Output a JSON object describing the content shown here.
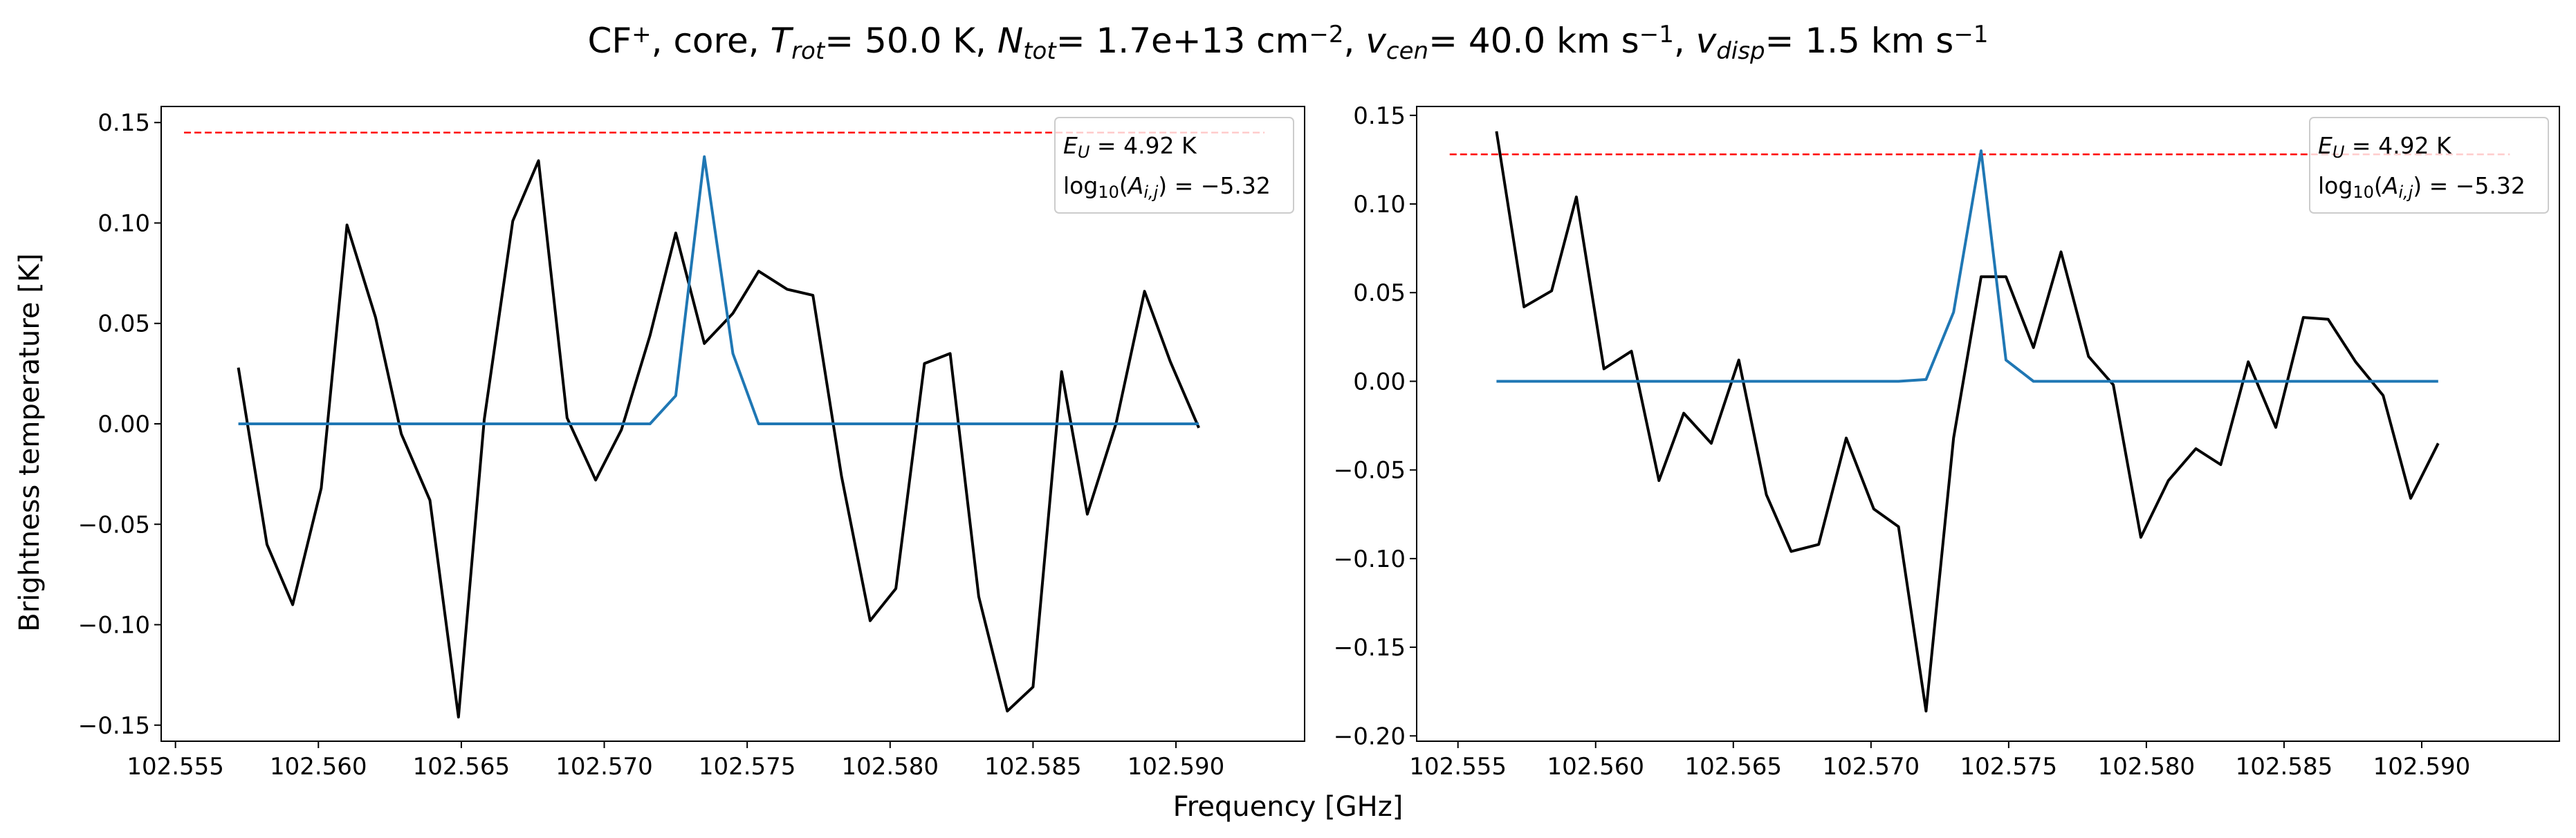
{
  "suptitle": "CF$^+$, core, $T_{rot}=$ 50.0 K, $N_{tot}=$ 1.7e+13 cm$^{-2}$, $v_{cen}=$ 40.0 km s$^{-1}$, $v_{disp}=$ 1.5 km s$^{-1}$",
  "xlabel": "Frequency [GHz]",
  "ylabel": "Brightness temperature [K]",
  "chart_data": [
    {
      "type": "line",
      "xlim": [
        102.5545,
        102.5945
      ],
      "ylim": [
        -0.158,
        0.158
      ],
      "xticks": [
        102.555,
        102.56,
        102.565,
        102.57,
        102.575,
        102.58,
        102.585,
        102.59
      ],
      "xtick_labels": [
        "102.555",
        "102.560",
        "102.565",
        "102.570",
        "102.575",
        "102.580",
        "102.585",
        "102.590"
      ],
      "yticks": [
        -0.15,
        -0.1,
        -0.05,
        0.0,
        0.05,
        0.1,
        0.15
      ],
      "ytick_labels": [
        "−0.15",
        "−0.10",
        "−0.05",
        "0.00",
        "0.05",
        "0.10",
        "0.15"
      ],
      "legend_location": "top-right",
      "legend_lines": [
        "E_U = 4.92 K",
        "log10(A_i,j) = −5.32"
      ],
      "hline": {
        "y": 0.145,
        "x": [
          102.5553,
          102.5931
        ],
        "color": "#ff0000",
        "style": "dashed"
      },
      "series": [
        {
          "color": "#000000",
          "x": [
            102.5572,
            102.5582,
            102.5591,
            102.5601,
            102.561,
            102.562,
            102.5629,
            102.5639,
            102.5649,
            102.5658,
            102.5668,
            102.5677,
            102.5687,
            102.5697,
            102.5706,
            102.5716,
            102.5725,
            102.5735,
            102.5745,
            102.5754,
            102.5764,
            102.5773,
            102.5783,
            102.5793,
            102.5802,
            102.5812,
            102.5821,
            102.5831,
            102.5841,
            102.585,
            102.586,
            102.5869,
            102.5879,
            102.5889,
            102.5898,
            102.5908
          ],
          "y": [
            0.028,
            -0.06,
            -0.09,
            -0.032,
            0.099,
            0.053,
            -0.005,
            -0.038,
            -0.146,
            0.002,
            0.101,
            0.131,
            0.003,
            -0.028,
            -0.003,
            0.044,
            0.095,
            0.04,
            0.055,
            0.076,
            0.067,
            0.064,
            -0.026,
            -0.098,
            -0.082,
            0.03,
            0.035,
            -0.086,
            -0.143,
            -0.131,
            0.026,
            -0.045,
            0.0,
            0.066,
            0.031,
            -0.002
          ]
        },
        {
          "color": "#1f77b4",
          "x": [
            102.5572,
            102.5716,
            102.5725,
            102.5735,
            102.5745,
            102.5754,
            102.5764,
            102.5908
          ],
          "y": [
            0.0,
            0.0,
            0.014,
            0.133,
            0.035,
            0.0,
            0.0,
            0.0
          ]
        }
      ]
    },
    {
      "type": "line",
      "xlim": [
        102.5535,
        102.595
      ],
      "ylim": [
        -0.203,
        0.155
      ],
      "xticks": [
        102.555,
        102.56,
        102.565,
        102.57,
        102.575,
        102.58,
        102.585,
        102.59
      ],
      "xtick_labels": [
        "102.555",
        "102.560",
        "102.565",
        "102.570",
        "102.575",
        "102.580",
        "102.585",
        "102.590"
      ],
      "yticks": [
        -0.2,
        -0.15,
        -0.1,
        -0.05,
        0.0,
        0.05,
        0.1,
        0.15
      ],
      "ytick_labels": [
        "−0.20",
        "−0.15",
        "−0.10",
        "−0.05",
        "0.00",
        "0.05",
        "0.10",
        "0.15"
      ],
      "legend_location": "top-right",
      "legend_lines": [
        "E_U = 4.92 K",
        "log10(A_i,j) = −5.32"
      ],
      "hline": {
        "y": 0.128,
        "x": [
          102.5547,
          102.5932
        ],
        "color": "#ff0000",
        "style": "dashed"
      },
      "series": [
        {
          "color": "#000000",
          "x": [
            102.5564,
            102.5574,
            102.5584,
            102.5593,
            102.5603,
            102.5613,
            102.5623,
            102.5632,
            102.5642,
            102.5652,
            102.5662,
            102.5671,
            102.5681,
            102.5691,
            102.5701,
            102.571,
            102.572,
            102.573,
            102.574,
            102.5749,
            102.5759,
            102.5769,
            102.5779,
            102.5788,
            102.5798,
            102.5808,
            102.5818,
            102.5827,
            102.5837,
            102.5847,
            102.5857,
            102.5866,
            102.5876,
            102.5886,
            102.5896,
            102.5906
          ],
          "y": [
            0.141,
            0.042,
            0.051,
            0.104,
            0.007,
            0.017,
            -0.056,
            -0.018,
            -0.035,
            0.012,
            -0.064,
            -0.096,
            -0.092,
            -0.032,
            -0.072,
            -0.082,
            -0.186,
            -0.032,
            0.059,
            0.059,
            0.019,
            0.073,
            0.014,
            -0.002,
            -0.088,
            -0.056,
            -0.038,
            -0.047,
            0.011,
            -0.026,
            0.036,
            0.035,
            0.011,
            -0.008,
            -0.066,
            -0.035
          ]
        },
        {
          "color": "#1f77b4",
          "x": [
            102.5564,
            102.571,
            102.572,
            102.573,
            102.574,
            102.5749,
            102.5759,
            102.5906
          ],
          "y": [
            0.0,
            0.0,
            0.001,
            0.039,
            0.13,
            0.012,
            0.0,
            0.0
          ]
        }
      ]
    }
  ]
}
